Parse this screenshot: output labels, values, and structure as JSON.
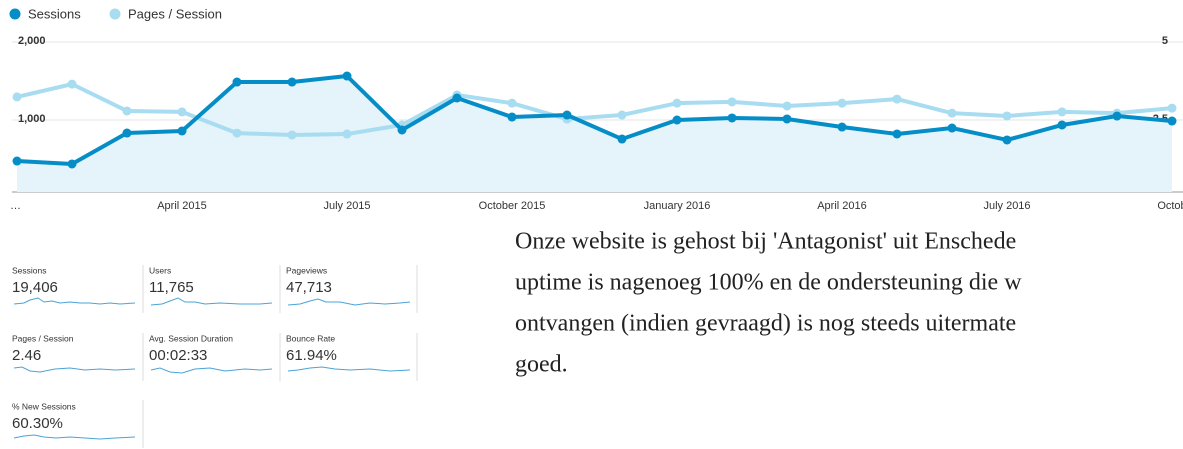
{
  "chart_data": {
    "type": "line",
    "categories": [
      "…",
      null,
      null,
      "April 2015",
      null,
      null,
      "July 2015",
      null,
      null,
      "October 2015",
      null,
      null,
      "January 2016",
      null,
      null,
      "April 2016",
      null,
      null,
      "July 2016",
      null,
      null,
      "Octob"
    ],
    "series": [
      {
        "name": "Sessions",
        "color": "#058dc7",
        "values": [
          474,
          436,
          833,
          859,
          1487,
          1487,
          1564,
          872,
          1282,
          1038,
          1064,
          756,
          1000,
          1026,
          1013,
          910,
          821,
          897,
          744,
          936,
          1051,
          987
        ]
      },
      {
        "name": "Pages / Session",
        "color": "#a8dcf0",
        "axis": "y2",
        "values": [
          3.24,
          3.65,
          2.79,
          2.76,
          2.08,
          2.02,
          2.05,
          2.34,
          3.3,
          3.04,
          2.53,
          2.66,
          3.04,
          3.08,
          2.95,
          3.04,
          3.17,
          2.72,
          2.63,
          2.76,
          2.72,
          2.88
        ]
      }
    ],
    "ylim": [
      0,
      2000
    ],
    "yticks": [
      {
        "value": 1000,
        "label": "1,000"
      },
      {
        "value": 2000,
        "label": "2,000"
      }
    ],
    "y2lim": [
      0,
      5
    ],
    "y2ticks": [
      2.5,
      5
    ],
    "grid": true
  },
  "metrics": [
    {
      "label": "Sessions",
      "value": "19,406"
    },
    {
      "label": "Users",
      "value": "11,765"
    },
    {
      "label": "Pageviews",
      "value": "47,713"
    },
    {
      "label": "Pages / Session",
      "value": "2.46"
    },
    {
      "label": "Avg. Session Duration",
      "value": "00:02:33"
    },
    {
      "label": "Bounce Rate",
      "value": "61.94%"
    },
    {
      "label": "% New Sessions",
      "value": "60.30%"
    }
  ],
  "paragraph": [
    "Onze website is gehost bij 'Antagonist' uit Enschede",
    "uptime is nagenoeg 100% en de ondersteuning die w",
    "ontvangen (indien gevraagd) is nog steeds uitermate",
    "goed."
  ]
}
